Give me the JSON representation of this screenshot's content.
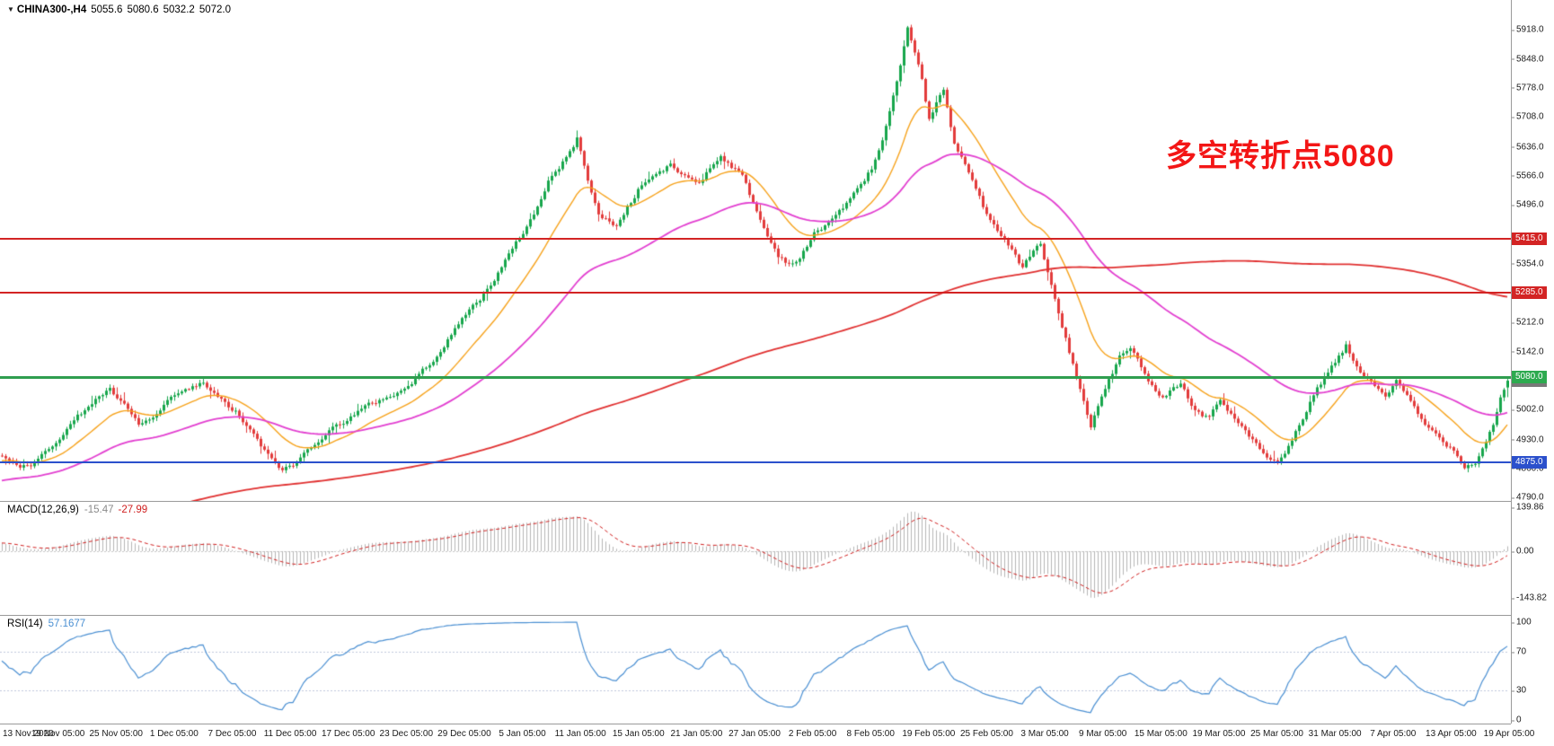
{
  "header": {
    "symbol_label": "CHINA300-,H4",
    "open": "5055.6",
    "high": "5080.6",
    "low": "5032.2",
    "close": "5072.0"
  },
  "annotation": {
    "text": "多空转折点5080",
    "color": "#f31616"
  },
  "panels": {
    "macd": {
      "label": "MACD(12,26,9)",
      "main_value": "-15.47",
      "signal_value": "-27.99",
      "axis": [
        "139.86",
        "0.00",
        "-143.82"
      ]
    },
    "rsi": {
      "label": "RSI(14)",
      "value": "57.1677",
      "axis": [
        "100",
        "70",
        "30",
        "0"
      ]
    }
  },
  "price_scale": {
    "ticks": [
      {
        "label": "5918.0",
        "value": 5918
      },
      {
        "label": "5848.0",
        "value": 5848
      },
      {
        "label": "5778.0",
        "value": 5778
      },
      {
        "label": "5708.0",
        "value": 5708
      },
      {
        "label": "5636.0",
        "value": 5636
      },
      {
        "label": "5566.0",
        "value": 5566
      },
      {
        "label": "5496.0",
        "value": 5496
      },
      {
        "label": "5354.0",
        "value": 5354
      },
      {
        "label": "5212.0",
        "value": 5212
      },
      {
        "label": "5142.0",
        "value": 5142
      },
      {
        "label": "5002.0",
        "value": 5002
      },
      {
        "label": "4930.0",
        "value": 4930
      },
      {
        "label": "4860.0",
        "value": 4860
      },
      {
        "label": "4790.0",
        "value": 4790
      }
    ],
    "badges": [
      {
        "label": "5415.0",
        "value": 5415,
        "color": "#d32424"
      },
      {
        "label": "5285.0",
        "value": 5285,
        "color": "#d32424"
      },
      {
        "label": "5072.0",
        "value": 5072,
        "color": "#787878"
      },
      {
        "label": "5080.0",
        "value": 5080,
        "color": "#2daa4f"
      },
      {
        "label": "4875.0",
        "value": 4875,
        "color": "#2b50cc"
      }
    ]
  },
  "levels": [
    {
      "value": 5415,
      "color": "#d32424",
      "thickness": 2
    },
    {
      "value": 5285,
      "color": "#d32424",
      "thickness": 2
    },
    {
      "value": 5080,
      "color": "#2f9e4f",
      "thickness": 3
    },
    {
      "value": 4875,
      "color": "#2b50cc",
      "thickness": 2
    }
  ],
  "chart_data": [
    {
      "type": "candlestick",
      "title": "CHINA300-,H4",
      "bars_total": 420,
      "y_range": [
        4782,
        5990
      ],
      "y_ticks": [
        5918,
        5848,
        5778,
        5708,
        5636,
        5566,
        5496,
        5415,
        5354,
        5285,
        5212,
        5142,
        5080,
        5072,
        5002,
        4930,
        4875,
        4860,
        4790
      ],
      "x_labels": [
        "13 Nov 2020",
        "19 Nov 05:00",
        "25 Nov 05:00",
        "1 Dec 05:00",
        "7 Dec 05:00",
        "11 Dec 05:00",
        "17 Dec 05:00",
        "23 Dec 05:00",
        "29 Dec 05:00",
        "5 Jan 05:00",
        "11 Jan 05:00",
        "15 Jan 05:00",
        "21 Jan 05:00",
        "27 Jan 05:00",
        "2 Feb 05:00",
        "8 Feb 05:00",
        "19 Feb 05:00",
        "25 Feb 05:00",
        "3 Mar 05:00",
        "9 Mar 05:00",
        "15 Mar 05:00",
        "19 Mar 05:00",
        "25 Mar 05:00",
        "31 Mar 05:00",
        "7 Apr 05:00",
        "13 Apr 05:00",
        "19 Apr 05:00"
      ],
      "last_bar": {
        "open": 5055.6,
        "high": 5080.6,
        "low": 5032.2,
        "close": 5072.0
      },
      "horizontal_levels": [
        5415,
        5285,
        5080,
        4875
      ],
      "up_color": "#17a64c",
      "down_color": "#e23b3b",
      "moving_averages": [
        {
          "name": "ma-fast",
          "period": 20,
          "type": "ema",
          "color": "#f6a21b",
          "width": 1.4
        },
        {
          "name": "ma-medium",
          "period": 65,
          "type": "ema",
          "color": "#e23fd0",
          "width": 1.8
        },
        {
          "name": "ma-slow",
          "period": 250,
          "type": "sma",
          "color": "#e03030",
          "width": 1.8
        }
      ],
      "prehistory": {
        "bars": 260,
        "start_price": 4480,
        "end_price": 4880
      },
      "price_path_anchors": [
        [
          0,
          4895
        ],
        [
          4,
          4868
        ],
        [
          8,
          4862
        ],
        [
          12,
          4900
        ],
        [
          16,
          4938
        ],
        [
          20,
          4975
        ],
        [
          24,
          5012
        ],
        [
          28,
          5040
        ],
        [
          30,
          5048
        ],
        [
          34,
          5010
        ],
        [
          38,
          4966
        ],
        [
          42,
          4980
        ],
        [
          48,
          5036
        ],
        [
          52,
          5050
        ],
        [
          56,
          5066
        ],
        [
          60,
          5030
        ],
        [
          65,
          4996
        ],
        [
          70,
          4940
        ],
        [
          74,
          4890
        ],
        [
          78,
          4858
        ],
        [
          81,
          4866
        ],
        [
          86,
          4915
        ],
        [
          90,
          4945
        ],
        [
          97,
          4986
        ],
        [
          102,
          5012
        ],
        [
          106,
          5030
        ],
        [
          110,
          5042
        ],
        [
          113,
          5058
        ],
        [
          117,
          5095
        ],
        [
          121,
          5135
        ],
        [
          125,
          5180
        ],
        [
          129,
          5235
        ],
        [
          133,
          5268
        ],
        [
          136,
          5305
        ],
        [
          140,
          5360
        ],
        [
          145,
          5430
        ],
        [
          149,
          5490
        ],
        [
          152,
          5555
        ],
        [
          155,
          5585
        ],
        [
          158,
          5622
        ],
        [
          160,
          5655
        ],
        [
          163,
          5560
        ],
        [
          166,
          5470
        ],
        [
          171,
          5445
        ],
        [
          174,
          5490
        ],
        [
          178,
          5545
        ],
        [
          182,
          5570
        ],
        [
          186,
          5590
        ],
        [
          190,
          5565
        ],
        [
          194,
          5550
        ],
        [
          197,
          5585
        ],
        [
          200,
          5615
        ],
        [
          203,
          5590
        ],
        [
          206,
          5565
        ],
        [
          210,
          5480
        ],
        [
          213,
          5420
        ],
        [
          216,
          5375
        ],
        [
          219,
          5355
        ],
        [
          222,
          5365
        ],
        [
          226,
          5425
        ],
        [
          230,
          5455
        ],
        [
          234,
          5490
        ],
        [
          238,
          5530
        ],
        [
          242,
          5585
        ],
        [
          245,
          5650
        ],
        [
          247,
          5720
        ],
        [
          250,
          5825
        ],
        [
          252,
          5915
        ],
        [
          254,
          5855
        ],
        [
          256,
          5800
        ],
        [
          258,
          5700
        ],
        [
          260,
          5745
        ],
        [
          262,
          5770
        ],
        [
          265,
          5640
        ],
        [
          268,
          5590
        ],
        [
          270,
          5560
        ],
        [
          273,
          5495
        ],
        [
          275,
          5465
        ],
        [
          278,
          5420
        ],
        [
          281,
          5385
        ],
        [
          284,
          5345
        ],
        [
          287,
          5385
        ],
        [
          289,
          5400
        ],
        [
          291,
          5330
        ],
        [
          293,
          5270
        ],
        [
          295,
          5200
        ],
        [
          297,
          5140
        ],
        [
          299,
          5085
        ],
        [
          301,
          5020
        ],
        [
          303,
          4958
        ],
        [
          305,
          5010
        ],
        [
          307,
          5055
        ],
        [
          309,
          5090
        ],
        [
          311,
          5130
        ],
        [
          314,
          5148
        ],
        [
          316,
          5120
        ],
        [
          318,
          5095
        ],
        [
          320,
          5060
        ],
        [
          323,
          5035
        ],
        [
          326,
          5055
        ],
        [
          328,
          5068
        ],
        [
          330,
          5030
        ],
        [
          332,
          5000
        ],
        [
          334,
          4990
        ],
        [
          336,
          4985
        ],
        [
          339,
          5025
        ],
        [
          341,
          5000
        ],
        [
          344,
          4975
        ],
        [
          346,
          4950
        ],
        [
          349,
          4915
        ],
        [
          351,
          4895
        ],
        [
          353,
          4880
        ],
        [
          355,
          4868
        ],
        [
          357,
          4895
        ],
        [
          359,
          4925
        ],
        [
          361,
          4965
        ],
        [
          363,
          5000
        ],
        [
          365,
          5035
        ],
        [
          367,
          5065
        ],
        [
          369,
          5090
        ],
        [
          371,
          5115
        ],
        [
          373,
          5140
        ],
        [
          374,
          5155
        ],
        [
          376,
          5120
        ],
        [
          378,
          5095
        ],
        [
          380,
          5075
        ],
        [
          382,
          5060
        ],
        [
          384,
          5045
        ],
        [
          385,
          5035
        ],
        [
          387,
          5060
        ],
        [
          388,
          5070
        ],
        [
          390,
          5045
        ],
        [
          392,
          5020
        ],
        [
          394,
          4990
        ],
        [
          396,
          4965
        ],
        [
          398,
          4950
        ],
        [
          400,
          4935
        ],
        [
          402,
          4920
        ],
        [
          404,
          4905
        ],
        [
          406,
          4880
        ],
        [
          407,
          4868
        ],
        [
          409,
          4872
        ],
        [
          410,
          4878
        ],
        [
          412,
          4908
        ],
        [
          413,
          4928
        ],
        [
          415,
          4968
        ],
        [
          417,
          5032
        ],
        [
          418,
          5052
        ],
        [
          419,
          5072
        ]
      ]
    },
    {
      "type": "bar",
      "name": "MACD histogram with signal line",
      "params": "12,26,9",
      "current_main": -15.47,
      "current_signal": -27.99,
      "y_max": 139.86,
      "y_min": -143.82,
      "histogram_color": "#b6b6b6",
      "signal_color": "#d02020"
    },
    {
      "type": "line",
      "name": "RSI",
      "params": "14",
      "current": 57.1677,
      "range": [
        0,
        100
      ],
      "levels": [
        70,
        30
      ],
      "line_color": "#4a8fd2"
    }
  ]
}
